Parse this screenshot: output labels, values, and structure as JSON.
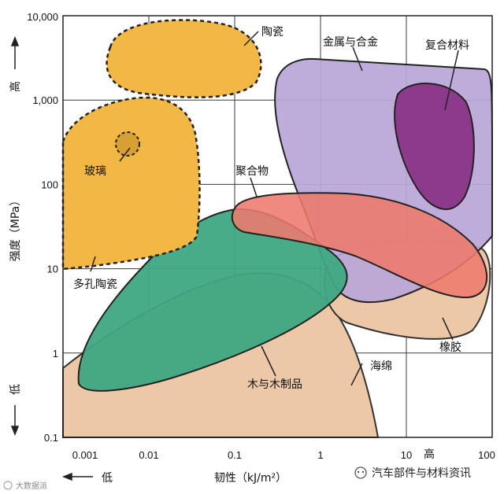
{
  "chart_data": {
    "type": "ashby-bubble",
    "x_axis": {
      "label": "韧性（kJ/m²）",
      "scale": "log",
      "range": [
        0.001,
        100
      ],
      "ticks": [
        "0.001",
        "0.01",
        "0.1",
        "1",
        "10",
        "100"
      ],
      "low_label": "低",
      "high_label": "高"
    },
    "y_axis": {
      "label": "强度（MPa）",
      "scale": "log",
      "range": [
        0.1,
        10000
      ],
      "ticks": [
        "0.1",
        "1",
        "10",
        "100",
        "1,000",
        "10,000"
      ],
      "low_label": "低",
      "high_label": "高"
    },
    "grid": true,
    "regions": [
      {
        "name": "陶瓷",
        "color": "#f3b744",
        "border": "dashed"
      },
      {
        "name": "玻璃",
        "color": "#d8a032",
        "border": "dashed"
      },
      {
        "name": "多孔陶瓷",
        "color": "#f3b744",
        "border": "dashed"
      },
      {
        "name": "金属与合金",
        "color": "#b9a6d8",
        "border": "solid"
      },
      {
        "name": "复合材料",
        "color": "#8e3a8c",
        "border": "solid"
      },
      {
        "name": "聚合物",
        "color": "#ee7a6c",
        "border": "solid"
      },
      {
        "name": "木与木制品",
        "color": "#3ea882",
        "border": "solid"
      },
      {
        "name": "海绵",
        "color": "#ecc8a6",
        "border": "solid"
      },
      {
        "name": "橡胶",
        "color": "#ecc8a6",
        "border": "solid"
      }
    ]
  },
  "watermark": {
    "left": "大数据派",
    "right": "汽车部件与材料资讯"
  }
}
